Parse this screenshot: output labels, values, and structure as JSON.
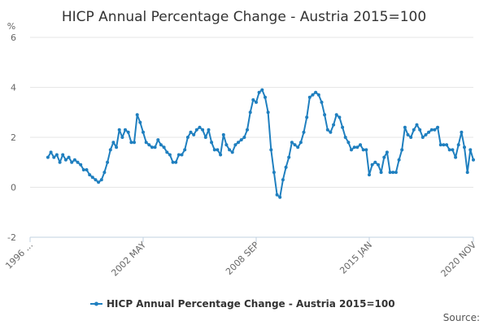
{
  "chart_data": {
    "type": "line",
    "title": "HICP Annual Percentage Change - Austria 2015=100",
    "ylabel": "%",
    "ylim": [
      -2,
      6
    ],
    "yticks": [
      -2,
      0,
      2,
      4,
      6
    ],
    "x_range": [
      "1996-01",
      "2020-11"
    ],
    "xticks": [
      {
        "label": "1996 ...",
        "date": "1996-01"
      },
      {
        "label": "2002 MAY",
        "date": "2002-05"
      },
      {
        "label": "2008 SEP",
        "date": "2008-09"
      },
      {
        "label": "2015 JAN",
        "date": "2015-01"
      },
      {
        "label": "2020 NOV",
        "date": "2020-11"
      }
    ],
    "grid": true,
    "legend": "bottom-center",
    "series": [
      {
        "name": "HICP Annual Percentage Change - Austria 2015=100",
        "color": "#1f7fbf",
        "points": [
          [
            "1997-01",
            1.2
          ],
          [
            "1997-03",
            1.4
          ],
          [
            "1997-05",
            1.2
          ],
          [
            "1997-07",
            1.3
          ],
          [
            "1997-09",
            1.0
          ],
          [
            "1997-11",
            1.3
          ],
          [
            "1998-01",
            1.1
          ],
          [
            "1998-03",
            1.2
          ],
          [
            "1998-05",
            1.0
          ],
          [
            "1998-07",
            1.1
          ],
          [
            "1998-09",
            1.0
          ],
          [
            "1998-11",
            0.9
          ],
          [
            "1999-01",
            0.7
          ],
          [
            "1999-03",
            0.7
          ],
          [
            "1999-05",
            0.5
          ],
          [
            "1999-07",
            0.4
          ],
          [
            "1999-09",
            0.3
          ],
          [
            "1999-11",
            0.2
          ],
          [
            "2000-01",
            0.3
          ],
          [
            "2000-03",
            0.6
          ],
          [
            "2000-05",
            1.0
          ],
          [
            "2000-07",
            1.5
          ],
          [
            "2000-09",
            1.8
          ],
          [
            "2000-11",
            1.6
          ],
          [
            "2001-01",
            2.3
          ],
          [
            "2001-03",
            2.0
          ],
          [
            "2001-05",
            2.3
          ],
          [
            "2001-07",
            2.2
          ],
          [
            "2001-09",
            1.8
          ],
          [
            "2001-11",
            1.8
          ],
          [
            "2002-01",
            2.9
          ],
          [
            "2002-03",
            2.6
          ],
          [
            "2002-05",
            2.2
          ],
          [
            "2002-07",
            1.8
          ],
          [
            "2002-09",
            1.7
          ],
          [
            "2002-11",
            1.6
          ],
          [
            "2003-01",
            1.6
          ],
          [
            "2003-03",
            1.9
          ],
          [
            "2003-05",
            1.7
          ],
          [
            "2003-07",
            1.6
          ],
          [
            "2003-09",
            1.4
          ],
          [
            "2003-11",
            1.3
          ],
          [
            "2004-01",
            1.0
          ],
          [
            "2004-03",
            1.0
          ],
          [
            "2004-05",
            1.3
          ],
          [
            "2004-07",
            1.3
          ],
          [
            "2004-09",
            1.5
          ],
          [
            "2004-11",
            2.0
          ],
          [
            "2005-01",
            2.2
          ],
          [
            "2005-03",
            2.1
          ],
          [
            "2005-05",
            2.3
          ],
          [
            "2005-07",
            2.4
          ],
          [
            "2005-09",
            2.3
          ],
          [
            "2005-11",
            2.0
          ],
          [
            "2006-01",
            2.3
          ],
          [
            "2006-03",
            1.8
          ],
          [
            "2006-05",
            1.5
          ],
          [
            "2006-07",
            1.5
          ],
          [
            "2006-09",
            1.3
          ],
          [
            "2006-11",
            2.1
          ],
          [
            "2007-01",
            1.7
          ],
          [
            "2007-03",
            1.5
          ],
          [
            "2007-05",
            1.4
          ],
          [
            "2007-07",
            1.7
          ],
          [
            "2007-09",
            1.8
          ],
          [
            "2007-11",
            1.9
          ],
          [
            "2008-01",
            2.0
          ],
          [
            "2008-03",
            2.3
          ],
          [
            "2008-05",
            3.0
          ],
          [
            "2008-07",
            3.5
          ],
          [
            "2008-09",
            3.4
          ],
          [
            "2008-11",
            3.8
          ],
          [
            "2009-01",
            3.9
          ],
          [
            "2009-03",
            3.6
          ],
          [
            "2009-05",
            3.0
          ],
          [
            "2009-07",
            1.5
          ],
          [
            "2009-09",
            0.6
          ],
          [
            "2009-11",
            -0.3
          ],
          [
            "2010-01",
            -0.4
          ],
          [
            "2010-03",
            0.3
          ],
          [
            "2010-05",
            0.8
          ],
          [
            "2010-07",
            1.2
          ],
          [
            "2010-09",
            1.8
          ],
          [
            "2010-11",
            1.7
          ],
          [
            "2011-01",
            1.6
          ],
          [
            "2011-03",
            1.8
          ],
          [
            "2011-05",
            2.2
          ],
          [
            "2011-07",
            2.8
          ],
          [
            "2011-09",
            3.6
          ],
          [
            "2011-11",
            3.7
          ],
          [
            "2012-01",
            3.8
          ],
          [
            "2012-03",
            3.7
          ],
          [
            "2012-05",
            3.4
          ],
          [
            "2012-07",
            2.9
          ],
          [
            "2012-09",
            2.3
          ],
          [
            "2012-11",
            2.2
          ],
          [
            "2013-01",
            2.5
          ],
          [
            "2013-03",
            2.9
          ],
          [
            "2013-05",
            2.8
          ],
          [
            "2013-07",
            2.4
          ],
          [
            "2013-09",
            2.0
          ],
          [
            "2013-11",
            1.8
          ],
          [
            "2014-01",
            1.5
          ],
          [
            "2014-03",
            1.6
          ],
          [
            "2014-05",
            1.6
          ],
          [
            "2014-07",
            1.7
          ],
          [
            "2014-09",
            1.5
          ],
          [
            "2014-11",
            1.5
          ],
          [
            "2015-01",
            0.5
          ],
          [
            "2015-03",
            0.9
          ],
          [
            "2015-05",
            1.0
          ],
          [
            "2015-07",
            0.9
          ],
          [
            "2015-09",
            0.6
          ],
          [
            "2015-11",
            1.2
          ],
          [
            "2016-01",
            1.4
          ],
          [
            "2016-03",
            0.6
          ],
          [
            "2016-05",
            0.6
          ],
          [
            "2016-07",
            0.6
          ],
          [
            "2016-09",
            1.1
          ],
          [
            "2016-11",
            1.5
          ],
          [
            "2017-01",
            2.4
          ],
          [
            "2017-03",
            2.1
          ],
          [
            "2017-05",
            2.0
          ],
          [
            "2017-07",
            2.3
          ],
          [
            "2017-09",
            2.5
          ],
          [
            "2017-11",
            2.3
          ],
          [
            "2018-01",
            2.0
          ],
          [
            "2018-03",
            2.1
          ],
          [
            "2018-05",
            2.2
          ],
          [
            "2018-07",
            2.3
          ],
          [
            "2018-09",
            2.3
          ],
          [
            "2018-11",
            2.4
          ],
          [
            "2019-01",
            1.7
          ],
          [
            "2019-03",
            1.7
          ],
          [
            "2019-05",
            1.7
          ],
          [
            "2019-07",
            1.5
          ],
          [
            "2019-09",
            1.5
          ],
          [
            "2019-11",
            1.2
          ],
          [
            "2020-01",
            1.7
          ],
          [
            "2020-03",
            2.2
          ],
          [
            "2020-05",
            1.6
          ],
          [
            "2020-07",
            0.6
          ],
          [
            "2020-09",
            1.5
          ],
          [
            "2020-11",
            1.1
          ]
        ]
      }
    ]
  },
  "footer": {
    "source_label": "Source:"
  }
}
